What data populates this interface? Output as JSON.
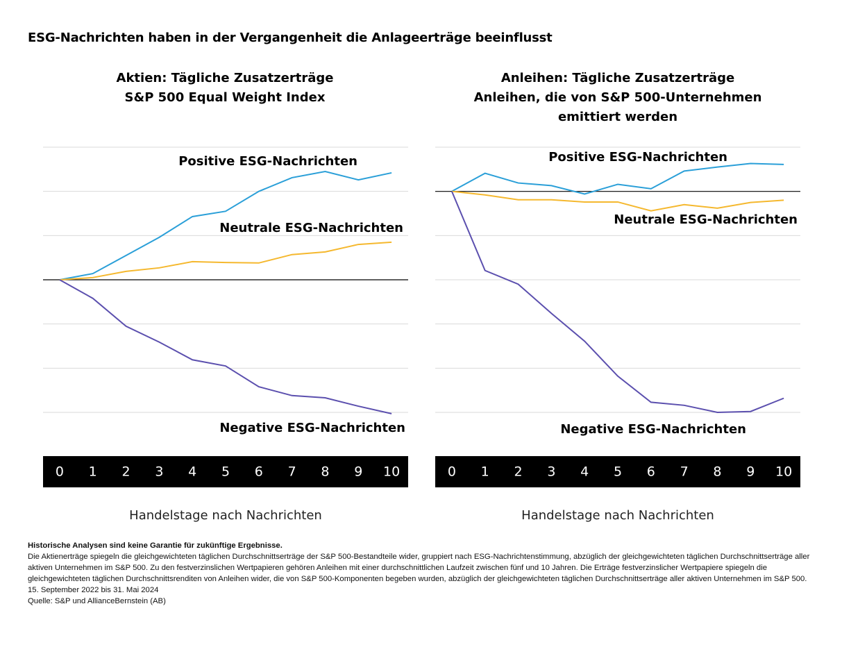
{
  "title": "ESG-Nachrichten haben in der Vergangenheit die Anlageerträge beeinflusst",
  "chart_data": [
    {
      "type": "line",
      "title": "Aktien: Tägliche Zusatzerträge",
      "subtitle": [
        "S&P 500 Equal Weight Index"
      ],
      "xlabel": "Handelstage nach Nachrichten",
      "x": [
        0,
        1,
        2,
        3,
        4,
        5,
        6,
        7,
        8,
        9,
        10
      ],
      "xlim": [
        -0.5,
        10.5
      ],
      "xticks": [
        0,
        1,
        2,
        3,
        4,
        5,
        6,
        7,
        8,
        9,
        10
      ],
      "ylim": [
        -3,
        3
      ],
      "yticks": [
        -3,
        -2,
        -1,
        0,
        1,
        2,
        3
      ],
      "grid": true,
      "series": [
        {
          "name": "Positive ESG-Nachrichten",
          "color": "#2a9fd8",
          "values": [
            0,
            0.14,
            0.55,
            0.96,
            1.43,
            1.55,
            2.0,
            2.31,
            2.45,
            2.26,
            2.42
          ]
        },
        {
          "name": "Neutrale ESG-Nachrichten",
          "color": "#f5b82e",
          "values": [
            0,
            0.05,
            0.19,
            0.27,
            0.41,
            0.39,
            0.38,
            0.57,
            0.63,
            0.8,
            0.85
          ]
        },
        {
          "name": "Negative ESG-Nachrichten",
          "color": "#5b4fae",
          "values": [
            0,
            -0.42,
            -1.05,
            -1.41,
            -1.81,
            -1.95,
            -2.42,
            -2.62,
            -2.67,
            -2.86,
            -3.03
          ]
        }
      ]
    },
    {
      "type": "line",
      "title": "Anleihen: Tägliche Zusatzerträge",
      "subtitle": [
        "Anleihen, die von S&P 500-Unternehmen",
        "emittiert werden"
      ],
      "xlabel": "Handelstage nach Nachrichten",
      "x": [
        0,
        1,
        2,
        3,
        4,
        5,
        6,
        7,
        8,
        9,
        10
      ],
      "xlim": [
        -0.5,
        10.5
      ],
      "xticks": [
        0,
        1,
        2,
        3,
        4,
        5,
        6,
        7,
        8,
        9,
        10
      ],
      "ylim": [
        -5,
        1
      ],
      "yticks": [
        -5,
        -4,
        -3,
        -2,
        -1,
        0,
        1
      ],
      "grid": true,
      "series": [
        {
          "name": "Positive ESG-Nachrichten",
          "color": "#2a9fd8",
          "values": [
            0,
            0.41,
            0.19,
            0.13,
            -0.06,
            0.16,
            0.06,
            0.46,
            0.55,
            0.63,
            0.61
          ]
        },
        {
          "name": "Neutrale ESG-Nachrichten",
          "color": "#f5b82e",
          "values": [
            0,
            -0.08,
            -0.19,
            -0.19,
            -0.24,
            -0.24,
            -0.44,
            -0.3,
            -0.38,
            -0.25,
            -0.2
          ]
        },
        {
          "name": "Negative ESG-Nachrichten",
          "color": "#5b4fae",
          "values": [
            0,
            -1.79,
            -2.1,
            -2.76,
            -3.39,
            -4.18,
            -4.77,
            -4.84,
            -5.0,
            -4.98,
            -4.68
          ]
        }
      ]
    }
  ],
  "notes": {
    "disclaimer": "Historische Analysen sind keine Garantie für zukünftige Ergebnisse.",
    "text": "Die Aktienerträge spiegeln die gleichgewichteten täglichen Durchschnittserträge der S&P 500-Bestandteile wider, gruppiert nach ESG-Nachrichtenstimmung, abzüglich der gleichgewichteten täglichen Durchschnittserträge aller aktiven Unternehmen im S&P 500. Zu den festverzinslichen Wertpapieren gehören Anleihen mit einer durchschnittlichen Laufzeit zwischen fünf und 10 Jahren. Die Erträge festverzinslicher Wertpapiere spiegeln die gleichgewichteten täglichen Durchschnittsrenditen von Anleihen wider, die von S&P 500-Komponenten begeben wurden, abzüglich der gleichgewichteten täglichen Durchschnittserträge aller aktiven Unternehmen im S&P 500.",
    "period": "15. September 2022 bis 31. Mai 2024",
    "source": "Quelle: S&P und AllianceBernstein (AB)"
  }
}
